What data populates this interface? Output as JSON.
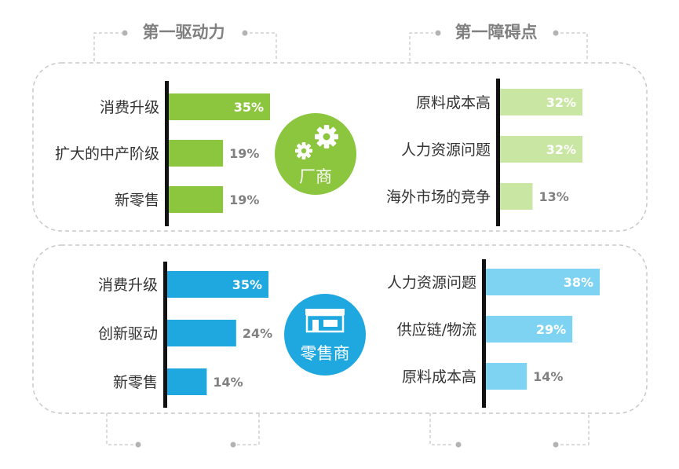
{
  "header": {
    "left_title": "第一驱动力",
    "right_title": "第一障碍点"
  },
  "badges": {
    "manufacturer": "厂商",
    "retailer": "零售商"
  },
  "colors": {
    "green": "#8cc63f",
    "light_green": "#c9e6a3",
    "blue": "#1fa8e0",
    "light_blue": "#7fd3f2",
    "dashed": "#c8c8c8",
    "dot": "#b3b3b3",
    "label_gray": "#808080"
  },
  "chart_data": [
    {
      "type": "bar",
      "orientation": "horizontal",
      "section": "厂商",
      "group": "第一驱动力",
      "categories": [
        "消费升级",
        "扩大的中产阶级",
        "新零售"
      ],
      "values": [
        35,
        19,
        19
      ],
      "value_labels": [
        "35%",
        "19%",
        "19%"
      ],
      "unit": "%",
      "color": "#8cc63f"
    },
    {
      "type": "bar",
      "orientation": "horizontal",
      "section": "厂商",
      "group": "第一障碍点",
      "categories": [
        "原料成本高",
        "人力资源问题",
        "海外市场的竞争"
      ],
      "values": [
        32,
        32,
        13
      ],
      "value_labels": [
        "32%",
        "32%",
        "13%"
      ],
      "unit": "%",
      "color": "#c9e6a3"
    },
    {
      "type": "bar",
      "orientation": "horizontal",
      "section": "零售商",
      "group": "第一驱动力",
      "categories": [
        "消费升级",
        "创新驱动",
        "新零售"
      ],
      "values": [
        35,
        24,
        14
      ],
      "value_labels": [
        "35%",
        "24%",
        "14%"
      ],
      "unit": "%",
      "color": "#1fa8e0"
    },
    {
      "type": "bar",
      "orientation": "horizontal",
      "section": "零售商",
      "group": "第一障碍点",
      "categories": [
        "人力资源问题",
        "供应链/物流",
        "原料成本高"
      ],
      "values": [
        38,
        29,
        14
      ],
      "value_labels": [
        "38%",
        "29%",
        "14%"
      ],
      "unit": "%",
      "color": "#7fd3f2"
    }
  ]
}
